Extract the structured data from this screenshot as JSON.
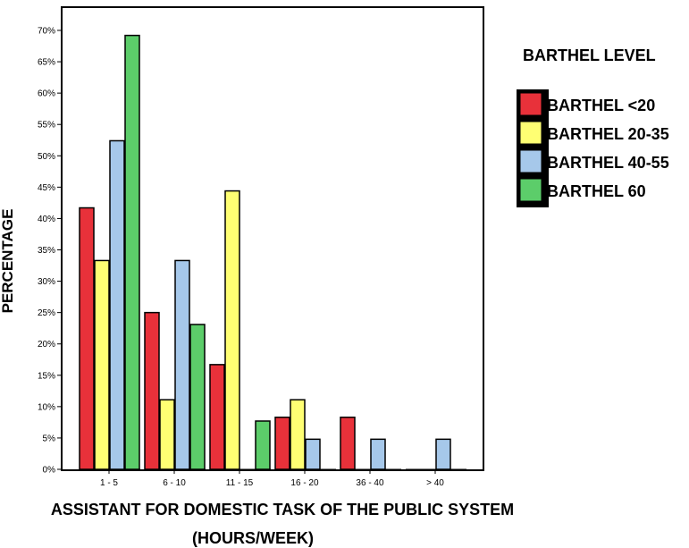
{
  "chart_data": {
    "type": "bar",
    "categories": [
      "1 - 5",
      "6 - 10",
      "11 - 15",
      "16 - 20",
      "36 - 40",
      "> 40"
    ],
    "series": [
      {
        "name": "BARTHEL <20",
        "color": "#e8313a",
        "values": [
          41.7,
          25.0,
          16.7,
          8.3,
          8.3,
          0
        ]
      },
      {
        "name": "BARTHEL 20-35",
        "color": "#ffff73",
        "values": [
          33.3,
          11.1,
          44.4,
          11.1,
          0,
          0
        ]
      },
      {
        "name": "BARTHEL 40-55",
        "color": "#a6c8ea",
        "values": [
          52.4,
          33.3,
          0,
          4.8,
          4.8,
          4.8
        ]
      },
      {
        "name": "BARTHEL 60",
        "color": "#5ccd6a",
        "values": [
          69.2,
          23.1,
          7.7,
          0,
          0,
          0
        ]
      }
    ],
    "yticks": [
      "0%",
      "5%",
      "10%",
      "15%",
      "20%",
      "25%",
      "30%",
      "35%",
      "40%",
      "45%",
      "50%",
      "55%",
      "60%",
      "65%",
      "70%"
    ],
    "ylim": [
      0,
      72
    ],
    "ylabel": "PERCENTAGE",
    "xlabel_line1": "ASSISTANT FOR DOMESTIC TASK OF THE PUBLIC SYSTEM",
    "xlabel_line2": "(HOURS/WEEK)",
    "legend_title": "BARTHEL LEVEL",
    "legend_position": "right",
    "grid": false
  }
}
